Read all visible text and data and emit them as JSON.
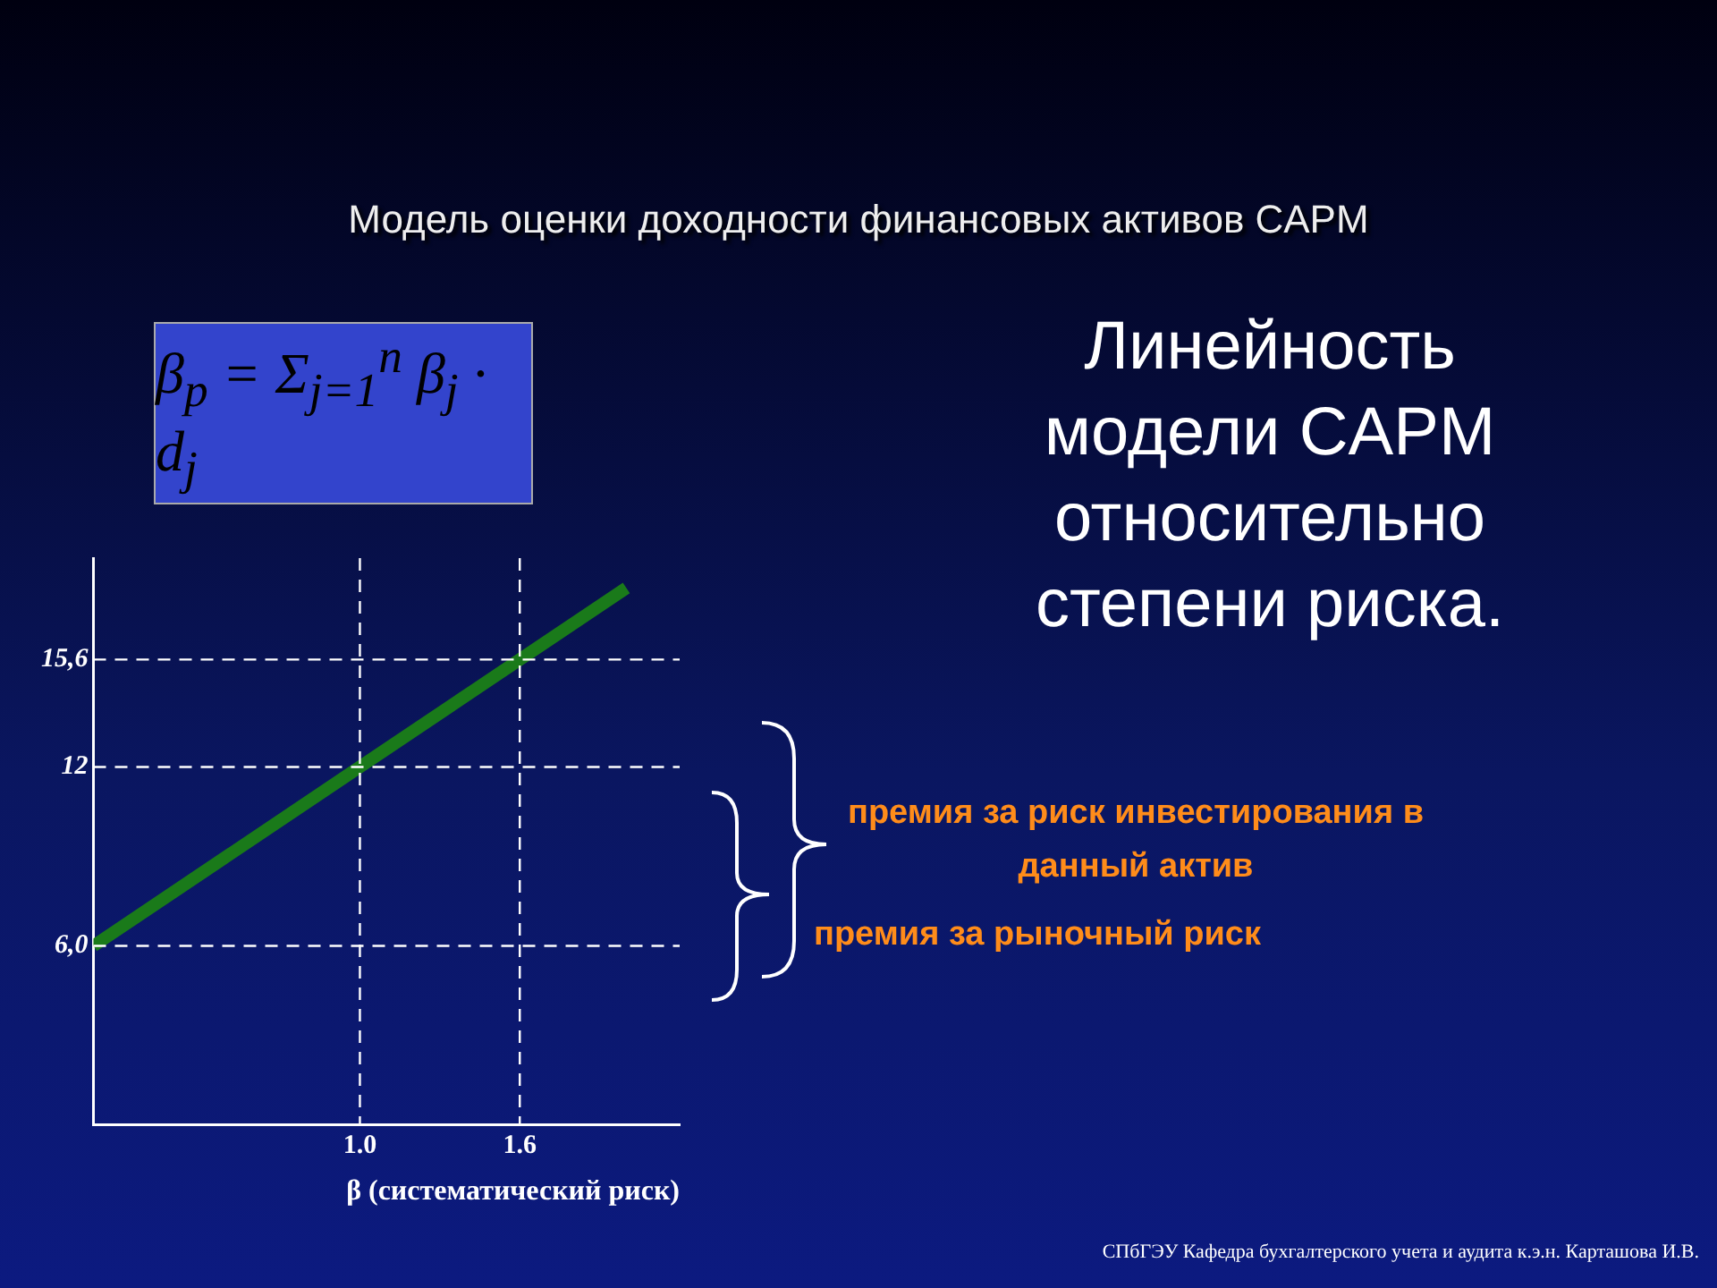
{
  "chart_data": {
    "type": "line",
    "title": "Модель оценки доходности финансовых активов CAPM",
    "subtitle": "Линейность модели CAPM относительно степени риска.",
    "xlabel": "β (систематический риск)",
    "annotations": [
      "β$_{p}$ = Σ$_{j=1}$$^{n}$ β$_{j}$ · d$_{j}$",
      "премия за риск инвестирования в данный актив",
      "премия за рыночный риск",
      "СПбГЭУ Кафедра бухгалтерского учета и аудита к.э.н. Карташова И.В."
    ],
    "series": [
      {
        "color": "#1a7a1a",
        "x": [
          0,
          1,
          1.6,
          2
        ],
        "values": [
          6,
          12,
          15.6,
          18
        ]
      }
    ],
    "xlim": [
      0,
      2.2
    ],
    "xticks": [
      {
        "value": 1,
        "label": "1.0"
      },
      1.6
    ],
    "ylim": [
      0,
      19
    ],
    "yticks": [
      {
        "value": 6,
        "label": "6,0"
      },
      12,
      {
        "value": 15.6,
        "label": "15,6"
      }
    ],
    "ref_lines": [
      {
        "axis": "y",
        "value": 15.6,
        "color": "#ffffff",
        "line_style": "dashed"
      },
      {
        "axis": "y",
        "value": 12,
        "color": "#ffffff",
        "line_style": "dashed"
      },
      {
        "axis": "y",
        "value": 6,
        "color": "#ffffff",
        "line_style": "dashed"
      },
      {
        "axis": "x",
        "value": 1,
        "color": "#ffffff",
        "line_style": "dashed"
      },
      {
        "axis": "x",
        "value": 1.6,
        "color": "#ffffff",
        "line_style": "dashed"
      }
    ],
    "grid": false,
    "legend": false,
    "marker": "none",
    "line_style": "solid"
  }
}
